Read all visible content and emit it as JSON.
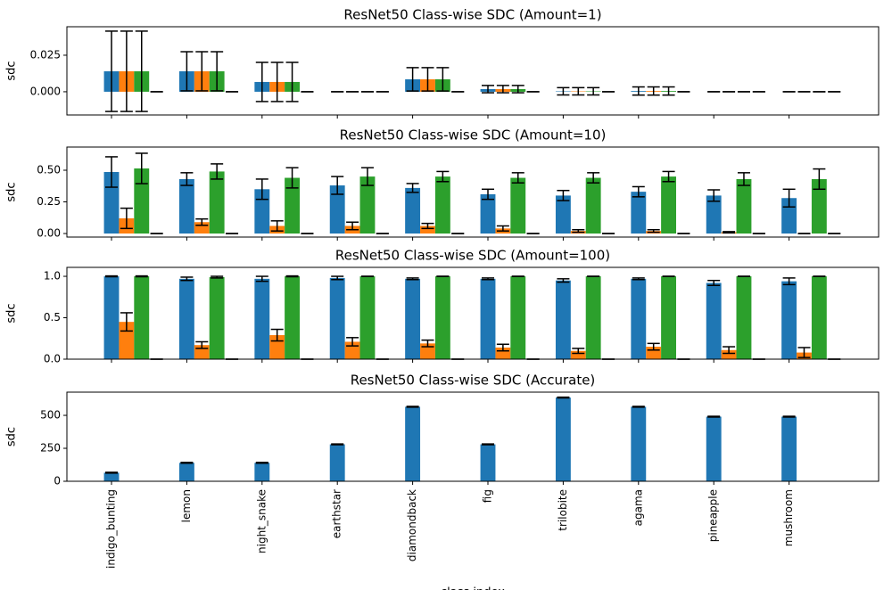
{
  "chart_data": [
    {
      "type": "bar",
      "title": "ResNet50 Class-wise SDC (Amount=1)",
      "ylabel": "sdc",
      "ylim": [
        -0.0159,
        0.0445
      ],
      "yticks": [
        {
          "value": 0,
          "label": "0.000"
        },
        {
          "value": 0.025,
          "label": "0.025"
        }
      ],
      "series": [
        {
          "color": "#1f77b4",
          "values": [
            0.014,
            0.014,
            0.0067,
            0,
            0.0085,
            0.0018,
            0.0003,
            0.0005,
            0,
            0
          ],
          "errors": [
            0.0275,
            0.0134,
            0.0134,
            0,
            0.008,
            0.0025,
            0.0025,
            0.0028,
            0,
            0
          ]
        },
        {
          "color": "#ff7f0e",
          "values": [
            0.014,
            0.014,
            0.0067,
            0,
            0.0085,
            0.0018,
            0.0003,
            0.0005,
            0,
            0
          ],
          "errors": [
            0.0275,
            0.0134,
            0.0134,
            0,
            0.008,
            0.0025,
            0.0025,
            0.0028,
            0,
            0
          ]
        },
        {
          "color": "#2ca02c",
          "values": [
            0.014,
            0.014,
            0.0067,
            0,
            0.0085,
            0.0018,
            0.0003,
            0.0005,
            0,
            0
          ],
          "errors": [
            0.0275,
            0.0134,
            0.0134,
            0,
            0.008,
            0.0025,
            0.0025,
            0.0028,
            0,
            0
          ]
        },
        {
          "color": "#d62728",
          "values": [
            0,
            0,
            0,
            0,
            0,
            0,
            0,
            0,
            0,
            0
          ],
          "errors": [
            0,
            0,
            0,
            0,
            0,
            0,
            0,
            0,
            0,
            0
          ]
        }
      ]
    },
    {
      "type": "bar",
      "title": "ResNet50 Class-wise SDC (Amount=10)",
      "ylabel": "sdc",
      "ylim": [
        -0.028,
        0.683
      ],
      "yticks": [
        {
          "value": 0,
          "label": "0.00"
        },
        {
          "value": 0.25,
          "label": "0.25"
        },
        {
          "value": 0.5,
          "label": "0.50"
        }
      ],
      "series": [
        {
          "color": "#1f77b4",
          "values": [
            0.486,
            0.43,
            0.35,
            0.38,
            0.36,
            0.31,
            0.3,
            0.33,
            0.3,
            0.28
          ],
          "errors": [
            0.12,
            0.05,
            0.08,
            0.07,
            0.035,
            0.04,
            0.04,
            0.04,
            0.045,
            0.07
          ]
        },
        {
          "color": "#ff7f0e",
          "values": [
            0.12,
            0.09,
            0.06,
            0.06,
            0.06,
            0.04,
            0.02,
            0.02,
            0.01,
            0
          ],
          "errors": [
            0.08,
            0.025,
            0.04,
            0.03,
            0.02,
            0.02,
            0.01,
            0.01,
            0.005,
            0
          ]
        },
        {
          "color": "#2ca02c",
          "values": [
            0.514,
            0.49,
            0.44,
            0.45,
            0.45,
            0.44,
            0.44,
            0.45,
            0.43,
            0.43
          ],
          "errors": [
            0.12,
            0.06,
            0.08,
            0.07,
            0.04,
            0.04,
            0.04,
            0.04,
            0.05,
            0.08
          ]
        },
        {
          "color": "#d62728",
          "values": [
            0,
            0,
            0,
            0,
            0,
            0,
            0,
            0,
            0,
            0
          ],
          "errors": [
            0,
            0,
            0,
            0,
            0,
            0,
            0,
            0,
            0,
            0
          ]
        }
      ]
    },
    {
      "type": "bar",
      "title": "ResNet50 Class-wise SDC (Amount=100)",
      "ylabel": "sdc",
      "ylim": [
        0,
        1.108
      ],
      "yticks": [
        {
          "value": 0,
          "label": "0.0"
        },
        {
          "value": 0.5,
          "label": "0.5"
        },
        {
          "value": 1,
          "label": "1.0"
        }
      ],
      "series": [
        {
          "color": "#1f77b4",
          "values": [
            1.0,
            0.97,
            0.97,
            0.98,
            0.97,
            0.97,
            0.95,
            0.97,
            0.92,
            0.94
          ],
          "errors": [
            0.005,
            0.02,
            0.03,
            0.02,
            0.01,
            0.01,
            0.02,
            0.01,
            0.03,
            0.04
          ]
        },
        {
          "color": "#ff7f0e",
          "values": [
            0.45,
            0.17,
            0.29,
            0.21,
            0.19,
            0.14,
            0.1,
            0.15,
            0.11,
            0.08
          ],
          "errors": [
            0.11,
            0.04,
            0.07,
            0.05,
            0.04,
            0.04,
            0.03,
            0.04,
            0.04,
            0.06
          ]
        },
        {
          "color": "#2ca02c",
          "values": [
            1.0,
            0.99,
            1.0,
            1.0,
            1.0,
            1.0,
            1.0,
            1.0,
            1.0,
            1.0
          ],
          "errors": [
            0.005,
            0.01,
            0.005,
            0,
            0,
            0,
            0,
            0,
            0,
            0
          ]
        },
        {
          "color": "#d62728",
          "values": [
            0,
            0,
            0,
            0,
            0,
            0,
            0,
            0,
            0,
            0
          ],
          "errors": [
            0,
            0,
            0,
            0,
            0,
            0,
            0,
            0,
            0,
            0
          ]
        }
      ]
    },
    {
      "type": "bar",
      "title": "ResNet50 Class-wise SDC (Accurate)",
      "ylabel": "sdc",
      "xlabel": "class index",
      "categories": [
        "indigo_bunting",
        "lemon",
        "night_snake",
        "earthstar",
        "diamondback",
        "fig",
        "trilobite",
        "agama",
        "pineapple",
        "mushroom"
      ],
      "ylim": [
        0,
        676
      ],
      "yticks": [
        0,
        250,
        500
      ],
      "series": [
        {
          "color": "#1f77b4",
          "values": [
            65,
            140,
            140,
            280,
            565,
            280,
            635,
            565,
            490,
            490
          ],
          "errors": [
            3,
            3,
            3,
            3,
            3,
            3,
            3,
            3,
            3,
            3
          ]
        }
      ]
    }
  ]
}
